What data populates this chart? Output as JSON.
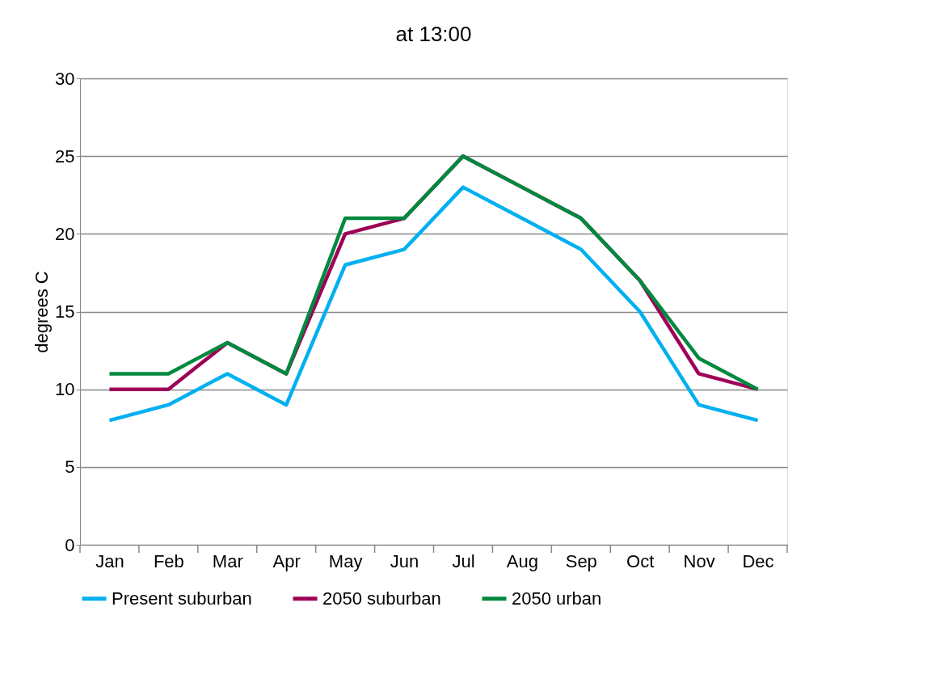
{
  "chart_data": {
    "type": "line",
    "title": "at 13:00",
    "ylabel": "degrees C",
    "categories": [
      "Jan",
      "Feb",
      "Mar",
      "Apr",
      "May",
      "Jun",
      "Jul",
      "Aug",
      "Sep",
      "Oct",
      "Nov",
      "Dec"
    ],
    "series": [
      {
        "name": "Present suburban",
        "color": "#00b0f0",
        "values": [
          8,
          9,
          11,
          9,
          18,
          19,
          23,
          21,
          19,
          15,
          9,
          8
        ]
      },
      {
        "name": "2050 suburban",
        "color": "#9e0058",
        "values": [
          10,
          10,
          13,
          11,
          20,
          21,
          25,
          23,
          21,
          17,
          11,
          10
        ]
      },
      {
        "name": "2050 urban",
        "color": "#00893e",
        "values": [
          11,
          11,
          13,
          11,
          21,
          21,
          25,
          23,
          21,
          17,
          12,
          10
        ]
      }
    ],
    "ylim": [
      0,
      30
    ],
    "yticks": [
      0,
      5,
      10,
      15,
      20,
      25,
      30
    ],
    "grid": "y",
    "legend": "bottom",
    "marker": "none",
    "line_style": "solid"
  }
}
